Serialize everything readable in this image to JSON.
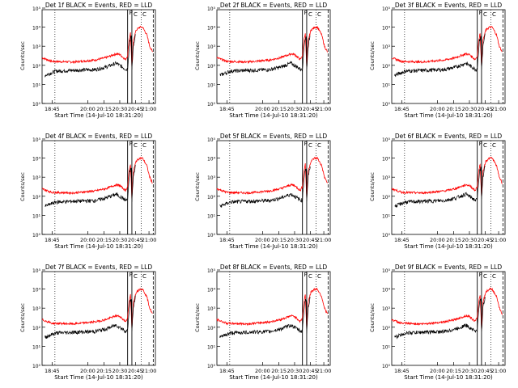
{
  "panel_titles": [
    "Det 1f BLACK = Events, RED = LLD",
    "Det 2f BLACK = Events, RED = LLD",
    "Det 3f BLACK = Events, RED = LLD",
    "Det 4f BLACK = Events, RED = LLD",
    "Det 5f BLACK = Events, RED = LLD",
    "Det 6f BLACK = Events, RED = LLD",
    "Det 7f BLACK = Events, RED = LLD",
    "Det 8f BLACK = Events, RED = LLD",
    "Det 9f BLACK = Events, RED = LLD"
  ],
  "xlabel": "Start Time (14-Jul-10 18:31:20)",
  "ylabel": "Counts/sec",
  "x_ticks": [
    "18:45",
    "20:00",
    "20:15",
    "20:30",
    "20:45",
    "21:00"
  ],
  "y_ticks": [
    "10⁰",
    "10¹",
    "10²",
    "10³",
    "10⁴",
    "10⁵"
  ],
  "marker_labels": [
    "P",
    "C",
    "C"
  ],
  "chart_data": {
    "type": "line",
    "panel_count": 9,
    "layout": "3x3 grid",
    "y_scale": "log",
    "ylim": [
      1,
      100000
    ],
    "x_ticks": [
      "18:45",
      "20:00",
      "20:15",
      "20:30",
      "20:45",
      "21:00"
    ],
    "series": [
      {
        "name": "Events",
        "color": "#000000"
      },
      {
        "name": "LLD",
        "color": "#ff0000"
      }
    ],
    "red_curve": [
      [
        "18:31",
        250
      ],
      [
        "18:45",
        160
      ],
      [
        "19:15",
        150
      ],
      [
        "19:45",
        190
      ],
      [
        "20:00",
        250
      ],
      [
        "20:15",
        400
      ],
      [
        "20:20",
        370
      ],
      [
        "20:28",
        200
      ],
      [
        "20:31",
        320
      ],
      [
        "20:33",
        2000
      ],
      [
        "20:35",
        5000
      ],
      [
        "20:37",
        80
      ],
      [
        "20:39",
        2000
      ],
      [
        "20:43",
        7000
      ],
      [
        "20:48",
        10000
      ],
      [
        "20:52",
        10000
      ],
      [
        "20:58",
        4000
      ],
      [
        "21:02",
        1000
      ],
      [
        "21:06",
        500
      ]
    ],
    "black_curve": [
      [
        "18:35",
        30
      ],
      [
        "18:50",
        50
      ],
      [
        "19:15",
        55
      ],
      [
        "19:45",
        60
      ],
      [
        "20:00",
        80
      ],
      [
        "20:15",
        130
      ],
      [
        "20:22",
        90
      ],
      [
        "20:29",
        60
      ],
      [
        "20:31",
        70
      ],
      [
        "20:34",
        2000
      ],
      [
        "20:36",
        3000
      ],
      [
        "20:37",
        60
      ],
      [
        "20:39",
        1000
      ],
      [
        "20:42",
        4000
      ]
    ]
  }
}
